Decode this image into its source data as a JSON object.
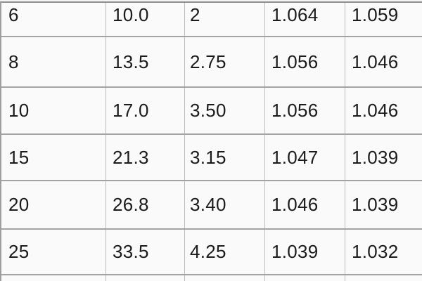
{
  "table": {
    "rows": [
      [
        "6",
        "10.0",
        "2",
        "1.064",
        "1.059"
      ],
      [
        "8",
        "13.5",
        "2.75",
        "1.056",
        "1.046"
      ],
      [
        "10",
        "17.0",
        "3.50",
        "1.056",
        "1.046"
      ],
      [
        "15",
        "21.3",
        "3.15",
        "1.047",
        "1.039"
      ],
      [
        "20",
        "26.8",
        "3.40",
        "1.046",
        "1.039"
      ],
      [
        "25",
        "33.5",
        "4.25",
        "1.039",
        "1.032"
      ]
    ]
  },
  "chart_data": {
    "type": "table",
    "title": "",
    "columns": [
      "",
      "",
      "",
      "",
      ""
    ],
    "rows": [
      [
        6,
        10.0,
        2,
        1.064,
        1.059
      ],
      [
        8,
        13.5,
        2.75,
        1.056,
        1.046
      ],
      [
        10,
        17.0,
        3.5,
        1.056,
        1.046
      ],
      [
        15,
        21.3,
        3.15,
        1.047,
        1.039
      ],
      [
        20,
        26.8,
        3.4,
        1.046,
        1.039
      ],
      [
        25,
        33.5,
        4.25,
        1.039,
        1.032
      ]
    ]
  },
  "colors": {
    "background": "#fafafa",
    "grid_line_horizontal": "#a3a3a3",
    "grid_line_vertical": "#bcbcbc",
    "text": "#1b1b1b"
  }
}
